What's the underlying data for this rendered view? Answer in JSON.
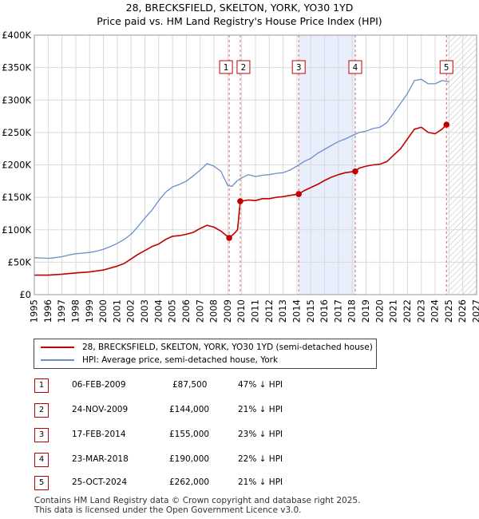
{
  "chart_data": {
    "type": "line",
    "title": "28, BRECKSFIELD, SKELTON, YORK, YO30 1YD",
    "subtitle": "Price paid vs. HM Land Registry's House Price Index (HPI)",
    "xlim": [
      1995,
      2027
    ],
    "ylim": [
      0,
      400000
    ],
    "y_ticks": [
      "£0",
      "£50K",
      "£100K",
      "£150K",
      "£200K",
      "£250K",
      "£300K",
      "£350K",
      "£400K"
    ],
    "x_ticks": [
      "1995",
      "1996",
      "1997",
      "1998",
      "1999",
      "2000",
      "2001",
      "2002",
      "2003",
      "2004",
      "2005",
      "2006",
      "2007",
      "2008",
      "2009",
      "2010",
      "2011",
      "2012",
      "2013",
      "2014",
      "2015",
      "2016",
      "2017",
      "2018",
      "2019",
      "2020",
      "2021",
      "2022",
      "2023",
      "2024",
      "2025",
      "2026",
      "2027"
    ],
    "grid": true,
    "series": [
      {
        "name": "HPI: Average price, semi-detached house, York",
        "color": "#6a8fc9",
        "points": [
          [
            1995.0,
            57000
          ],
          [
            1995.5,
            56500
          ],
          [
            1996.0,
            56000
          ],
          [
            1996.5,
            57000
          ],
          [
            1997.0,
            58500
          ],
          [
            1997.5,
            61000
          ],
          [
            1998.0,
            63000
          ],
          [
            1998.5,
            64000
          ],
          [
            1999.0,
            65000
          ],
          [
            1999.5,
            67000
          ],
          [
            2000.0,
            70000
          ],
          [
            2000.5,
            74000
          ],
          [
            2001.0,
            79000
          ],
          [
            2001.5,
            85000
          ],
          [
            2002.0,
            93000
          ],
          [
            2002.5,
            105000
          ],
          [
            2003.0,
            118000
          ],
          [
            2003.5,
            130000
          ],
          [
            2004.0,
            145000
          ],
          [
            2004.5,
            158000
          ],
          [
            2005.0,
            166000
          ],
          [
            2005.5,
            170000
          ],
          [
            2006.0,
            175000
          ],
          [
            2006.5,
            183000
          ],
          [
            2007.0,
            192000
          ],
          [
            2007.5,
            202000
          ],
          [
            2008.0,
            198000
          ],
          [
            2008.5,
            190000
          ],
          [
            2009.0,
            168000
          ],
          [
            2009.3,
            167000
          ],
          [
            2009.7,
            176000
          ],
          [
            2010.0,
            180000
          ],
          [
            2010.5,
            185000
          ],
          [
            2011.0,
            182000
          ],
          [
            2011.5,
            184000
          ],
          [
            2012.0,
            185000
          ],
          [
            2012.5,
            187000
          ],
          [
            2013.0,
            188000
          ],
          [
            2013.5,
            192000
          ],
          [
            2014.0,
            198000
          ],
          [
            2014.5,
            205000
          ],
          [
            2015.0,
            210000
          ],
          [
            2015.5,
            218000
          ],
          [
            2016.0,
            224000
          ],
          [
            2016.5,
            230000
          ],
          [
            2017.0,
            236000
          ],
          [
            2017.5,
            240000
          ],
          [
            2018.0,
            245000
          ],
          [
            2018.5,
            250000
          ],
          [
            2019.0,
            252000
          ],
          [
            2019.5,
            256000
          ],
          [
            2020.0,
            258000
          ],
          [
            2020.5,
            265000
          ],
          [
            2021.0,
            280000
          ],
          [
            2021.5,
            295000
          ],
          [
            2022.0,
            310000
          ],
          [
            2022.5,
            330000
          ],
          [
            2023.0,
            332000
          ],
          [
            2023.5,
            325000
          ],
          [
            2024.0,
            325000
          ],
          [
            2024.5,
            330000
          ],
          [
            2025.0,
            328000
          ]
        ]
      },
      {
        "name": "28, BRECKSFIELD, SKELTON, YORK, YO30 1YD (semi-detached house)",
        "color": "#c00000",
        "points": [
          [
            1995.0,
            30000
          ],
          [
            1996.0,
            30000
          ],
          [
            1997.0,
            31500
          ],
          [
            1998.0,
            33500
          ],
          [
            1999.0,
            35000
          ],
          [
            2000.0,
            38000
          ],
          [
            2001.0,
            44000
          ],
          [
            2001.5,
            48000
          ],
          [
            2002.0,
            55000
          ],
          [
            2002.5,
            62000
          ],
          [
            2003.0,
            68000
          ],
          [
            2003.5,
            74000
          ],
          [
            2004.0,
            78000
          ],
          [
            2004.5,
            85000
          ],
          [
            2005.0,
            90000
          ],
          [
            2005.5,
            91000
          ],
          [
            2006.0,
            93000
          ],
          [
            2006.5,
            96000
          ],
          [
            2007.0,
            102000
          ],
          [
            2007.5,
            107000
          ],
          [
            2008.0,
            104000
          ],
          [
            2008.5,
            98000
          ],
          [
            2009.1,
            87500
          ],
          [
            2009.5,
            95000
          ],
          [
            2009.7,
            100000
          ],
          [
            2009.9,
            144000
          ],
          [
            2010.5,
            146000
          ],
          [
            2011.0,
            145000
          ],
          [
            2011.5,
            148000
          ],
          [
            2012.0,
            148000
          ],
          [
            2012.5,
            150000
          ],
          [
            2013.0,
            151000
          ],
          [
            2013.5,
            153000
          ],
          [
            2014.13,
            155000
          ],
          [
            2014.5,
            160000
          ],
          [
            2015.0,
            165000
          ],
          [
            2015.5,
            170000
          ],
          [
            2016.0,
            176000
          ],
          [
            2016.5,
            181000
          ],
          [
            2017.0,
            185000
          ],
          [
            2017.5,
            188000
          ],
          [
            2018.22,
            190000
          ],
          [
            2018.5,
            195000
          ],
          [
            2019.0,
            198000
          ],
          [
            2019.5,
            200000
          ],
          [
            2020.0,
            201000
          ],
          [
            2020.5,
            205000
          ],
          [
            2021.0,
            215000
          ],
          [
            2021.5,
            225000
          ],
          [
            2022.0,
            240000
          ],
          [
            2022.5,
            255000
          ],
          [
            2023.0,
            258000
          ],
          [
            2023.5,
            250000
          ],
          [
            2024.0,
            248000
          ],
          [
            2024.5,
            255000
          ],
          [
            2024.82,
            262000
          ]
        ]
      }
    ],
    "sales": [
      {
        "num": "1",
        "date": "06-FEB-2009",
        "price": "£87,500",
        "hpi": "47% ↓ HPI",
        "x": 2009.1,
        "y": 87500
      },
      {
        "num": "2",
        "date": "24-NOV-2009",
        "price": "£144,000",
        "hpi": "21% ↓ HPI",
        "x": 2009.9,
        "y": 144000
      },
      {
        "num": "3",
        "date": "17-FEB-2014",
        "price": "£155,000",
        "hpi": "23% ↓ HPI",
        "x": 2014.13,
        "y": 155000
      },
      {
        "num": "4",
        "date": "23-MAR-2018",
        "price": "£190,000",
        "hpi": "22% ↓ HPI",
        "x": 2018.22,
        "y": 190000
      },
      {
        "num": "5",
        "date": "25-OCT-2024",
        "price": "£262,000",
        "hpi": "21% ↓ HPI",
        "x": 2024.82,
        "y": 262000
      }
    ],
    "shaded_period": [
      2014.13,
      2018.22
    ],
    "forecast_hatch_from": 2024.82
  },
  "footer": {
    "line1": "Contains HM Land Registry data © Crown copyright and database right 2025.",
    "line2": "This data is licensed under the Open Government Licence v3.0."
  }
}
